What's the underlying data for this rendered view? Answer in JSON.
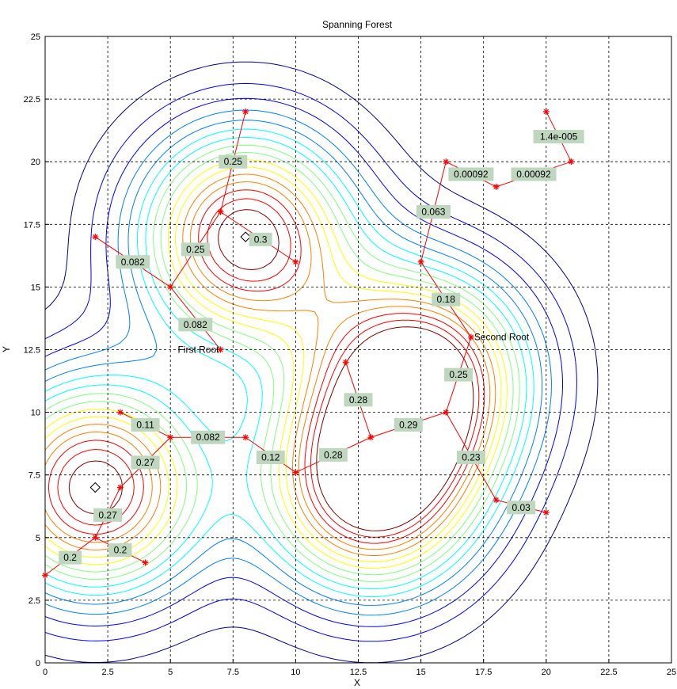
{
  "chart_data": {
    "type": "contour",
    "title": "Spanning Forest",
    "xlabel": "X",
    "ylabel": "Y",
    "xlim": [
      0,
      25
    ],
    "ylim": [
      0,
      25
    ],
    "grid": "on",
    "xticks": [
      "0",
      "2.5",
      "5",
      "7.5",
      "10",
      "12.5",
      "15",
      "17.5",
      "20",
      "22.5",
      "25"
    ],
    "yticks": [
      "0",
      "2.5",
      "5",
      "7.5",
      "10",
      "12.5",
      "15",
      "17.5",
      "20",
      "22.5",
      "25"
    ],
    "colormap": [
      "#00008f",
      "#0000ff",
      "#0080ff",
      "#00ffff",
      "#80ff80",
      "#ffff00",
      "#ff8000",
      "#ff0000",
      "#800000"
    ],
    "marker_color": "#ff0000",
    "label_bg_color": "#bfd6bf",
    "peaks": [
      {
        "x": 2,
        "y": 7
      },
      {
        "x": 8,
        "y": 17
      },
      {
        "x": 15,
        "y": 11.5
      },
      {
        "x": 13,
        "y": 7
      }
    ],
    "nodes": [
      {
        "id": "n1",
        "x": 0,
        "y": 3.5
      },
      {
        "id": "n2",
        "x": 2,
        "y": 5
      },
      {
        "id": "n3",
        "x": 4,
        "y": 4
      },
      {
        "id": "n4",
        "x": 3,
        "y": 7
      },
      {
        "id": "n5",
        "x": 5,
        "y": 9
      },
      {
        "id": "n6",
        "x": 3,
        "y": 10
      },
      {
        "id": "n7",
        "x": 8,
        "y": 9
      },
      {
        "id": "n8",
        "x": 10,
        "y": 7.6
      },
      {
        "id": "n9",
        "x": 13,
        "y": 9
      },
      {
        "id": "n10",
        "x": 12,
        "y": 12
      },
      {
        "id": "n11",
        "x": 16,
        "y": 10
      },
      {
        "id": "n12",
        "x": 17,
        "y": 13
      },
      {
        "id": "n13",
        "x": 18,
        "y": 6.5
      },
      {
        "id": "n14",
        "x": 20,
        "y": 6
      },
      {
        "id": "n15",
        "x": 15,
        "y": 16
      },
      {
        "id": "n16",
        "x": 16,
        "y": 20
      },
      {
        "id": "n17",
        "x": 18,
        "y": 19
      },
      {
        "id": "n18",
        "x": 21,
        "y": 20
      },
      {
        "id": "n19",
        "x": 20,
        "y": 22
      },
      {
        "id": "n20",
        "x": 7,
        "y": 12.5
      },
      {
        "id": "n21",
        "x": 5,
        "y": 15
      },
      {
        "id": "n22",
        "x": 2,
        "y": 17
      },
      {
        "id": "n23",
        "x": 7,
        "y": 18
      },
      {
        "id": "n24",
        "x": 8,
        "y": 22
      },
      {
        "id": "n25",
        "x": 10,
        "y": 16
      }
    ],
    "edges": [
      {
        "from": "n1",
        "to": "n2",
        "label": "0.2",
        "lx": 1,
        "ly": 4.2
      },
      {
        "from": "n2",
        "to": "n3",
        "label": "0.2",
        "lx": 3,
        "ly": 4.5
      },
      {
        "from": "n2",
        "to": "n4",
        "label": "0.27",
        "lx": 2.5,
        "ly": 5.9
      },
      {
        "from": "n4",
        "to": "n5",
        "label": "0.27",
        "lx": 4,
        "ly": 8
      },
      {
        "from": "n6",
        "to": "n5",
        "label": "0.11",
        "lx": 4,
        "ly": 9.5
      },
      {
        "from": "n5",
        "to": "n7",
        "label": "0.082",
        "lx": 6.5,
        "ly": 9
      },
      {
        "from": "n7",
        "to": "n8",
        "label": "0.12",
        "lx": 9,
        "ly": 8.2
      },
      {
        "from": "n8",
        "to": "n9",
        "label": "0.28",
        "lx": 11.5,
        "ly": 8.3
      },
      {
        "from": "n10",
        "to": "n9",
        "label": "0.28",
        "lx": 12.5,
        "ly": 10.5
      },
      {
        "from": "n9",
        "to": "n11",
        "label": "0.29",
        "lx": 14.5,
        "ly": 9.5
      },
      {
        "from": "n11",
        "to": "n12",
        "label": "0.25",
        "lx": 16.5,
        "ly": 11.5
      },
      {
        "from": "n11",
        "to": "n13",
        "label": "0.23",
        "lx": 17,
        "ly": 8.2
      },
      {
        "from": "n13",
        "to": "n14",
        "label": "0.03",
        "lx": 19,
        "ly": 6.2
      },
      {
        "from": "n12",
        "to": "n15",
        "label": "0.18",
        "lx": 16,
        "ly": 14.5
      },
      {
        "from": "n15",
        "to": "n16",
        "label": "0.063",
        "lx": 15.5,
        "ly": 18
      },
      {
        "from": "n16",
        "to": "n17",
        "label": "0.00092",
        "lx": 17,
        "ly": 19.5
      },
      {
        "from": "n17",
        "to": "n18",
        "label": "0.00092",
        "lx": 19.5,
        "ly": 19.5
      },
      {
        "from": "n18",
        "to": "n19",
        "label": "1.4e-005",
        "lx": 20.5,
        "ly": 21
      },
      {
        "from": "n20",
        "to": "n21",
        "label": "0.082",
        "lx": 6,
        "ly": 13.5
      },
      {
        "from": "n21",
        "to": "n22",
        "label": "0.082",
        "lx": 3.5,
        "ly": 16
      },
      {
        "from": "n21",
        "to": "n23",
        "label": "0.25",
        "lx": 6,
        "ly": 16.5
      },
      {
        "from": "n23",
        "to": "n24",
        "label": "0.25",
        "lx": 7.5,
        "ly": 20
      },
      {
        "from": "n23",
        "to": "n25",
        "label": "0.3",
        "lx": 8.6,
        "ly": 16.9
      }
    ],
    "roots": [
      {
        "label": "First Root",
        "x": 7,
        "y": 12.5,
        "anchor": "end"
      },
      {
        "label": "Second Root",
        "x": 17,
        "y": 13,
        "anchor": "start"
      }
    ]
  }
}
